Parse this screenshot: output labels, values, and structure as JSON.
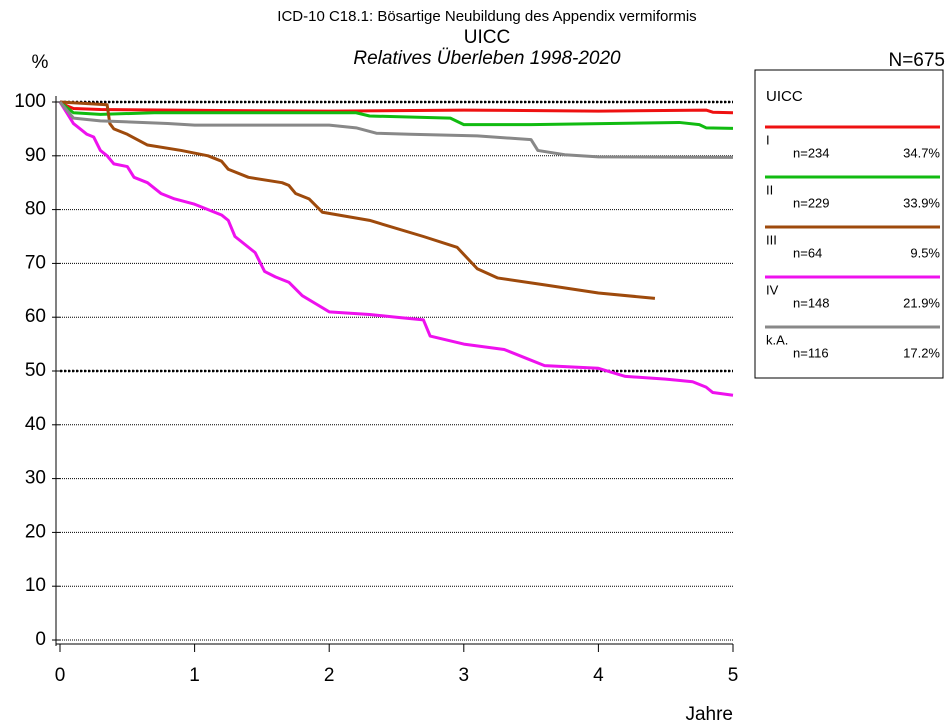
{
  "chart_data": {
    "type": "line",
    "title": "ICD-10 C18.1: Bösartige Neubildung des Appendix vermiformis",
    "subtitle": "UICC",
    "subtitle2": "Relatives Überleben 1998-2020",
    "ylabel": "%",
    "xlabel": "Jahre",
    "total": "N=675",
    "legend_title": "UICC",
    "xlim": [
      0,
      5
    ],
    "ylim": [
      0,
      100
    ],
    "xticks": [
      0,
      1,
      2,
      3,
      4,
      5
    ],
    "yticks": [
      0,
      10,
      20,
      30,
      40,
      50,
      60,
      70,
      80,
      90,
      100
    ],
    "grid": true,
    "reference_lines": [
      50,
      100
    ],
    "series": [
      {
        "name": "I",
        "n_label": "n=234",
        "share_label": "34.7%",
        "color": "#ee1111",
        "x": [
          0,
          0.05,
          0.1,
          0.3,
          1.3,
          2.0,
          3.0,
          4.0,
          4.8,
          4.85,
          5.0
        ],
        "values": [
          100,
          99.3,
          98.8,
          98.6,
          98.4,
          98.3,
          98.5,
          98.3,
          98.5,
          98.1,
          98.0
        ]
      },
      {
        "name": "II",
        "n_label": "n=229",
        "share_label": "33.9%",
        "color": "#11bb11",
        "x": [
          0,
          0.1,
          0.3,
          0.7,
          2.2,
          2.3,
          2.9,
          3.0,
          3.5,
          4.6,
          4.75,
          4.8,
          5.0
        ],
        "values": [
          100,
          98,
          97.7,
          98,
          98,
          97.4,
          97,
          95.8,
          95.8,
          96.2,
          95.8,
          95.2,
          95.1
        ]
      },
      {
        "name": "III",
        "n_label": "n=64",
        "share_label": "9.5%",
        "color": "#9e4a0c",
        "x": [
          0,
          0.35,
          0.37,
          0.4,
          0.5,
          0.65,
          0.9,
          1.1,
          1.2,
          1.25,
          1.4,
          1.65,
          1.7,
          1.75,
          1.85,
          1.95,
          2.3,
          2.7,
          2.95,
          3.1,
          3.25,
          3.6,
          4.0,
          4.42
        ],
        "values": [
          100,
          99.5,
          96,
          95,
          94,
          92,
          91,
          90,
          89,
          87.5,
          86,
          85,
          84.5,
          83,
          82,
          79.5,
          78,
          75,
          73,
          69,
          67.3,
          66,
          64.5,
          63.5
        ]
      },
      {
        "name": "IV",
        "n_label": "n=148",
        "share_label": "21.9%",
        "color": "#ee11ee",
        "x": [
          0,
          0.05,
          0.1,
          0.2,
          0.25,
          0.3,
          0.35,
          0.4,
          0.5,
          0.55,
          0.65,
          0.75,
          0.85,
          1.0,
          1.1,
          1.2,
          1.25,
          1.3,
          1.35,
          1.45,
          1.52,
          1.6,
          1.7,
          1.8,
          1.9,
          2.0,
          2.3,
          2.5,
          2.7,
          2.75,
          3.0,
          3.3,
          3.45,
          3.6,
          4.0,
          4.2,
          4.5,
          4.7,
          4.8,
          4.85,
          5.0
        ],
        "values": [
          100,
          98,
          96,
          94,
          93.5,
          91,
          90,
          88.5,
          88,
          86,
          85,
          83,
          82,
          81,
          80,
          79,
          78,
          75,
          74,
          72,
          68.5,
          67.5,
          66.5,
          64,
          62.5,
          61,
          60.5,
          60,
          59.5,
          56.5,
          55,
          54,
          52.5,
          51,
          50.5,
          49,
          48.5,
          48,
          47,
          46,
          45.5
        ]
      },
      {
        "name": "k.A.",
        "n_label": "n=116",
        "share_label": "17.2%",
        "color": "#888888",
        "x": [
          0,
          0.1,
          0.3,
          0.8,
          1.0,
          2.0,
          2.2,
          2.35,
          2.6,
          3.1,
          3.5,
          3.55,
          3.75,
          4.0,
          5.0
        ],
        "values": [
          100,
          97,
          96.5,
          96,
          95.7,
          95.7,
          95.2,
          94.2,
          94,
          93.7,
          93,
          91,
          90.2,
          89.8,
          89.7
        ]
      }
    ]
  }
}
